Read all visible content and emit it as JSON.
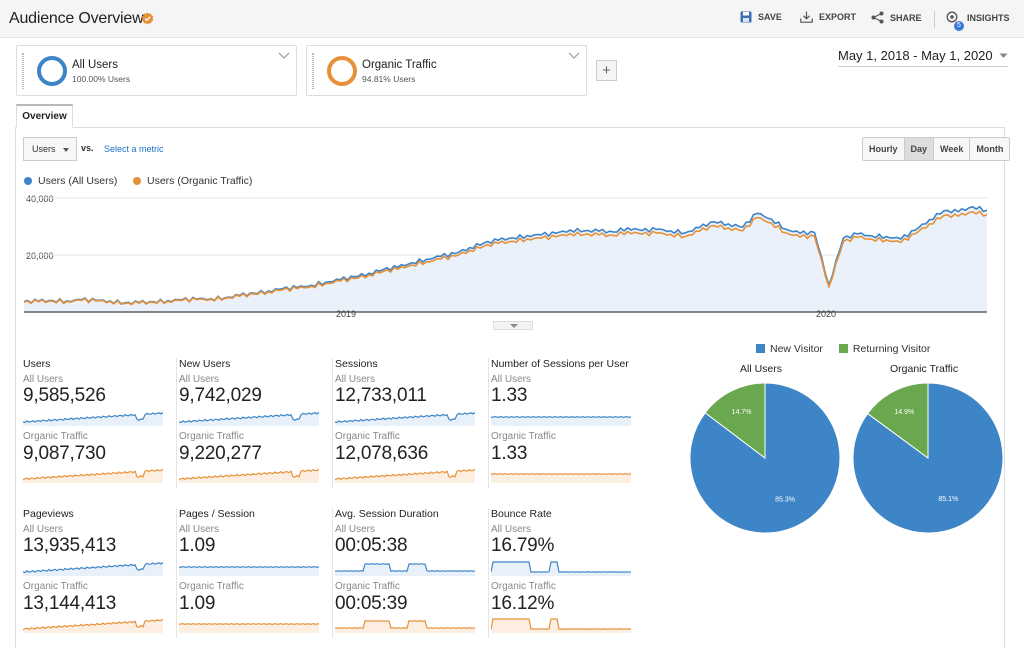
{
  "header": {
    "title": "Audience Overview",
    "actions": {
      "save": "SAVE",
      "export": "EXPORT",
      "share": "SHARE",
      "insights": "INSIGHTS",
      "insights_badge": "5"
    }
  },
  "segments": [
    {
      "name": "All Users",
      "pct": "100.00% Users",
      "color": "#3d85c6"
    },
    {
      "name": "Organic Traffic",
      "pct": "94.81% Users",
      "color": "#e69138"
    }
  ],
  "add_segment": "+",
  "date_range": "May 1, 2018 - May 1, 2020",
  "tabs": {
    "overview": "Overview"
  },
  "controls": {
    "metric": "Users",
    "vs": "vs.",
    "select_metric": "Select a metric",
    "granularity": [
      "Hourly",
      "Day",
      "Week",
      "Month"
    ],
    "active_granularity": "Day"
  },
  "chart_legend": {
    "all": "Users (All Users)",
    "organic": "Users (Organic Traffic)"
  },
  "chart_data": [
    {
      "type": "line",
      "title": "",
      "series": [
        {
          "name": "Users (All Users)",
          "color": "#3d85c6",
          "values": [
            3700,
            3800,
            4000,
            3900,
            4300,
            4100,
            3900,
            3200,
            3300,
            3600,
            4000,
            4300,
            4500,
            4700,
            5000,
            5800,
            6600,
            7400,
            8200,
            8600,
            9400,
            10500,
            11300,
            12400,
            13600,
            14900,
            15700,
            17300,
            18500,
            19500,
            20500,
            22600,
            24200,
            25200,
            26000,
            26800,
            27100,
            27600,
            28800,
            28500,
            28400,
            28100,
            29500,
            28600,
            29000,
            28500,
            27800,
            29600,
            31700,
            30900,
            29800,
            34600,
            32600,
            29100,
            27600,
            27900,
            9500,
            25900,
            27400,
            26700,
            26500,
            25600,
            28700,
            32400,
            35500,
            35200,
            36900,
            35700
          ]
        },
        {
          "name": "Users (Organic Traffic)",
          "color": "#e69138",
          "values": [
            3500,
            3600,
            3800,
            3700,
            4100,
            3900,
            3700,
            3000,
            3100,
            3400,
            3800,
            4100,
            4300,
            4500,
            4800,
            5500,
            6300,
            7100,
            7800,
            8200,
            9000,
            10000,
            10800,
            11800,
            13000,
            14200,
            15000,
            16500,
            17600,
            18600,
            19600,
            21600,
            23100,
            24100,
            24800,
            25600,
            25900,
            26400,
            27500,
            27200,
            27100,
            26800,
            28200,
            27300,
            27700,
            27200,
            26500,
            28300,
            30300,
            29500,
            28500,
            33100,
            31200,
            27800,
            26300,
            26600,
            8900,
            24700,
            26200,
            25500,
            25300,
            24400,
            27400,
            30900,
            33900,
            33600,
            35200,
            34100
          ]
        }
      ],
      "ylim": [
        0,
        40000
      ],
      "yticks": [
        "40,000",
        "20,000"
      ],
      "xticks": [
        "2019",
        "2020"
      ]
    },
    {
      "type": "pie",
      "title": "All Users",
      "categories": [
        "New Visitor",
        "Returning Visitor"
      ],
      "values": [
        85.3,
        14.7
      ],
      "labels": [
        "85.3%",
        "14.7%"
      ],
      "colors": [
        "#3d85c6",
        "#6aa84f"
      ]
    },
    {
      "type": "pie",
      "title": "Organic Traffic",
      "categories": [
        "New Visitor",
        "Returning Visitor"
      ],
      "values": [
        85.1,
        14.9
      ],
      "labels": [
        "85.1%",
        "14.9%"
      ],
      "colors": [
        "#3d85c6",
        "#6aa84f"
      ]
    }
  ],
  "pie_legend": [
    "New Visitor",
    "Returning Visitor"
  ],
  "metrics": [
    {
      "name": "Users",
      "all_label": "All Users",
      "all": "9,585,526",
      "org_label": "Organic Traffic",
      "org": "9,087,730",
      "shape": "growth"
    },
    {
      "name": "New Users",
      "all_label": "All Users",
      "all": "9,742,029",
      "org_label": "Organic Traffic",
      "org": "9,220,277",
      "shape": "growth"
    },
    {
      "name": "Sessions",
      "all_label": "All Users",
      "all": "12,733,011",
      "org_label": "Organic Traffic",
      "org": "12,078,636",
      "shape": "growth"
    },
    {
      "name": "Number of Sessions per User",
      "all_label": "All Users",
      "all": "1.33",
      "org_label": "Organic Traffic",
      "org": "1.33",
      "shape": "flat"
    },
    {
      "name": "Pageviews",
      "all_label": "All Users",
      "all": "13,935,413",
      "org_label": "Organic Traffic",
      "org": "13,144,413",
      "shape": "growth"
    },
    {
      "name": "Pages / Session",
      "all_label": "All Users",
      "all": "1.09",
      "org_label": "Organic Traffic",
      "org": "1.09",
      "shape": "flat"
    },
    {
      "name": "Avg. Session Duration",
      "all_label": "All Users",
      "all": "00:05:38",
      "org_label": "Organic Traffic",
      "org": "00:05:39",
      "shape": "step"
    },
    {
      "name": "Bounce Rate",
      "all_label": "All Users",
      "all": "16.79%",
      "org_label": "Organic Traffic",
      "org": "16.12%",
      "shape": "bounce"
    }
  ]
}
